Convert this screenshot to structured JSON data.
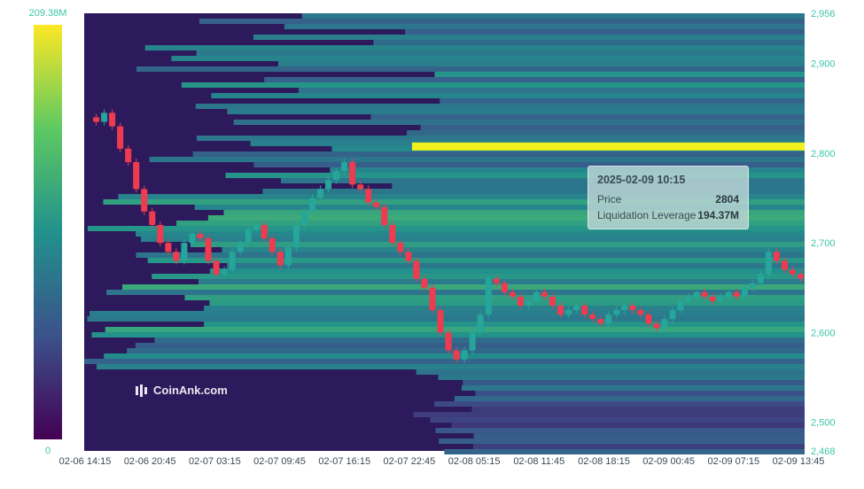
{
  "chart_data": {
    "type": "heatmap",
    "colorbar": {
      "max_label": "209.38M",
      "min_label": "0",
      "colors": [
        "#440154",
        "#3b528b",
        "#21918c",
        "#5ec962",
        "#fde725"
      ]
    },
    "y_axis": {
      "position": "right",
      "range": [
        2468,
        2956
      ],
      "ticks": [
        "2,956",
        "2,900",
        "2,800",
        "2,700",
        "2,600",
        "2,500",
        "2,468"
      ],
      "tick_values": [
        2956,
        2900,
        2800,
        2700,
        2600,
        2500,
        2468
      ]
    },
    "x_axis": {
      "ticks": [
        "02-06 14:15",
        "02-06 20:45",
        "02-07 03:15",
        "02-07 09:45",
        "02-07 16:15",
        "02-07 22:45",
        "02-08 05:15",
        "02-08 11:45",
        "02-08 18:15",
        "02-09 00:45",
        "02-09 07:15",
        "02-09 13:45"
      ]
    },
    "price_path": [
      2840,
      2835,
      2845,
      2830,
      2805,
      2790,
      2760,
      2735,
      2720,
      2700,
      2690,
      2680,
      2700,
      2710,
      2705,
      2680,
      2665,
      2670,
      2690,
      2700,
      2715,
      2720,
      2705,
      2690,
      2675,
      2695,
      2720,
      2735,
      2750,
      2760,
      2770,
      2780,
      2790,
      2765,
      2760,
      2745,
      2740,
      2720,
      2700,
      2690,
      2680,
      2660,
      2650,
      2625,
      2600,
      2580,
      2570,
      2580,
      2600,
      2620,
      2660,
      2655,
      2645,
      2640,
      2630,
      2635,
      2645,
      2640,
      2630,
      2620,
      2625,
      2630,
      2620,
      2615,
      2610,
      2620,
      2625,
      2630,
      2625,
      2620,
      2610,
      2605,
      2615,
      2625,
      2635,
      2640,
      2645,
      2640,
      2635,
      2640,
      2645,
      2640,
      2650,
      2655,
      2665,
      2690,
      2680,
      2670,
      2665,
      2660
    ],
    "tooltip": {
      "title": "2025-02-09 10:15",
      "rows": [
        {
          "label": "Price",
          "value": "2804"
        },
        {
          "label": "Liquidation Leverage",
          "value": "194.37M"
        }
      ]
    },
    "colors": {
      "axis_text": "#3ac7a8",
      "up_candle": "#26a69a",
      "down_candle": "#ef3b4f",
      "hot_level": "#f2f01c"
    }
  },
  "watermark": {
    "text": "CoinAnk.com"
  }
}
